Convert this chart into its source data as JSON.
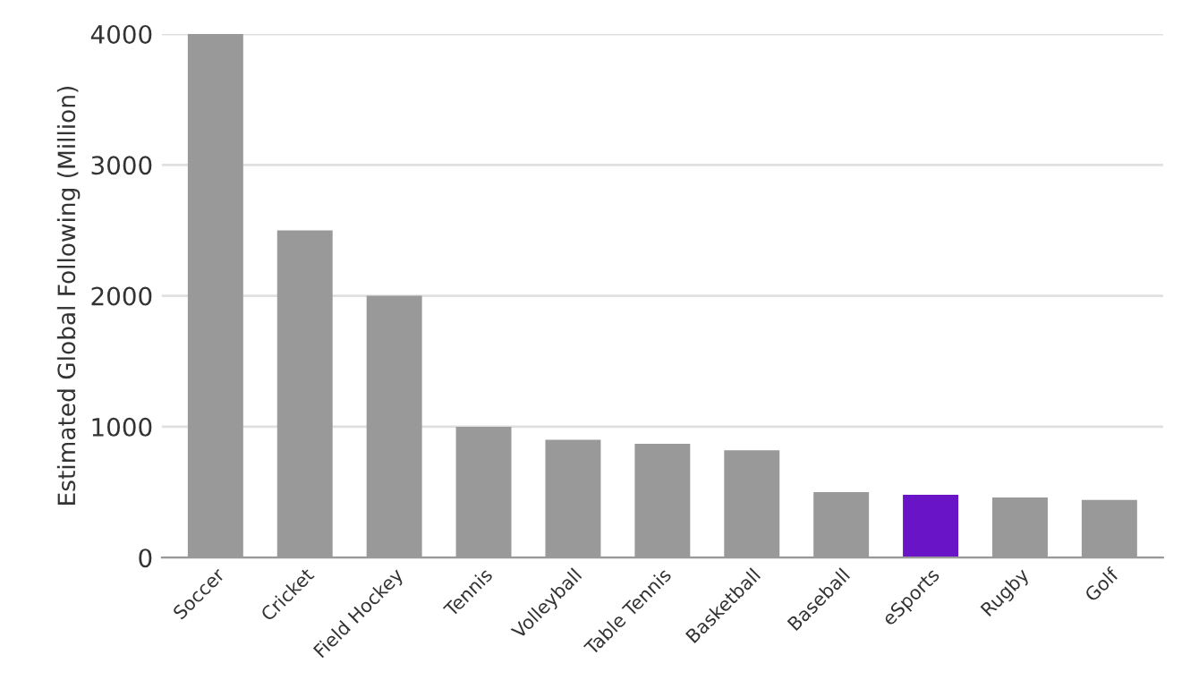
{
  "chart_data": {
    "type": "bar",
    "ylabel": "Estimated Global Following (Million)",
    "categories": [
      "Soccer",
      "Cricket",
      "Field Hockey",
      "Tennis",
      "Volleyball",
      "Table Tennis",
      "Basketball",
      "Baseball",
      "eSports",
      "Rugby",
      "Golf"
    ],
    "values": [
      4000,
      2500,
      2000,
      1000,
      900,
      870,
      820,
      500,
      480,
      460,
      440
    ],
    "colors": [
      "#999999",
      "#999999",
      "#999999",
      "#999999",
      "#999999",
      "#999999",
      "#999999",
      "#999999",
      "#6a14c8",
      "#999999",
      "#999999"
    ],
    "ylim": [
      0,
      4000
    ],
    "yticks": [
      0,
      1000,
      2000,
      3000,
      4000
    ],
    "grid": "y"
  }
}
